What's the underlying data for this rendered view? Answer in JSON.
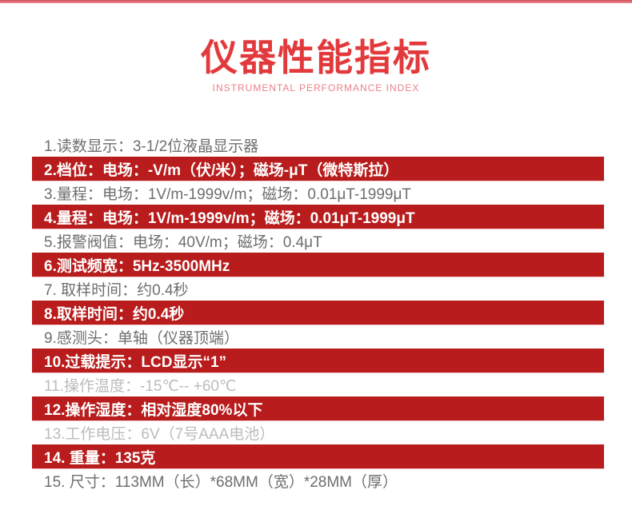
{
  "colors": {
    "accent_bar_top": "#d24f59",
    "accent_bar_bottom": "#ec8a90",
    "title_red": "#e23a3c",
    "subtitle_pink": "#ea8186",
    "band_red": "#b81c1c",
    "row_text_gray": "#6e6e6e",
    "row_text_light_gray": "#bcbcbc",
    "band_text": "#ffffff"
  },
  "header": {
    "title": "仪器性能指标",
    "subtitle": "INSTRUMENTAL PERFORMANCE INDEX"
  },
  "spec_list": {
    "rows": [
      {
        "text": "1.读数显示：3-1/2位液晶显示器",
        "variant": "plain"
      },
      {
        "text": "2.档位：电场：-V/m（伏/米）；磁场-μT（微特斯拉）",
        "variant": "red"
      },
      {
        "text": "3.量程：电场：1V/m-1999v/m；磁场：0.01μT-1999μT",
        "variant": "plain"
      },
      {
        "text": "4.量程：电场：1V/m-1999v/m；磁场：0.01μT-1999μT",
        "variant": "red"
      },
      {
        "text": "5.报警阀值：电场：40V/m；磁场：0.4μT",
        "variant": "plain"
      },
      {
        "text": "6.测试频宽：5Hz-3500MHz",
        "variant": "red"
      },
      {
        "text": "7. 取样时间：约0.4秒",
        "variant": "plain"
      },
      {
        "text": "8.取样时间：约0.4秒",
        "variant": "red"
      },
      {
        "text": "9.感测头：单轴（仪器顶端）",
        "variant": "plain"
      },
      {
        "text": "10.过载提示：LCD显示“1”",
        "variant": "red"
      },
      {
        "text": "11.操作温度：-15℃-- +60℃",
        "variant": "light"
      },
      {
        "text": "12.操作湿度：相对湿度80%以下",
        "variant": "red"
      },
      {
        "text": "13.工作电压：6V（7号AAA电池）",
        "variant": "light"
      },
      {
        "text": "14. 重量：135克",
        "variant": "red"
      },
      {
        "text": "15. 尺寸：113MM（长）*68MM（宽）*28MM（厚）",
        "variant": "plain"
      }
    ]
  }
}
